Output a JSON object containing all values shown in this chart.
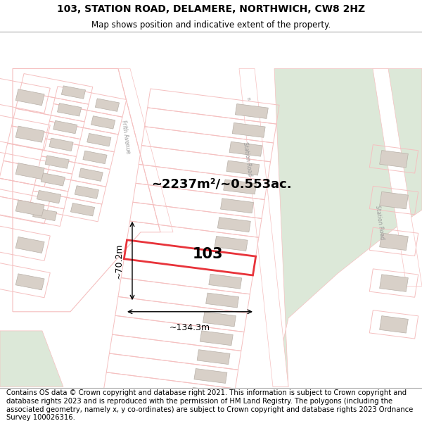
{
  "title_line1": "103, STATION ROAD, DELAMERE, NORTHWICH, CW8 2HZ",
  "title_line2": "Map shows position and indicative extent of the property.",
  "footer_text": "Contains OS data © Crown copyright and database right 2021. This information is subject to Crown copyright and database rights 2023 and is reproduced with the permission of HM Land Registry. The polygons (including the associated geometry, namely x, y co-ordinates) are subject to Crown copyright and database rights 2023 Ordnance Survey 100026316.",
  "bg_color": "#ffffff",
  "map_bg": "#ffffff",
  "green_color": "#dce8d8",
  "plot_red": "#e8333a",
  "plot_light": "#f5c0c0",
  "bldg_fill": "#d8d0c8",
  "bldg_edge": "#b8b0a8",
  "area_text": "~2237m²/~0.553ac.",
  "label_103": "103",
  "dim_width": "~134.3m",
  "dim_height": "~70.2m",
  "title_fontsize": 10,
  "subtitle_fontsize": 8.5,
  "footer_fontsize": 7.2,
  "road_label_color": "#999999"
}
